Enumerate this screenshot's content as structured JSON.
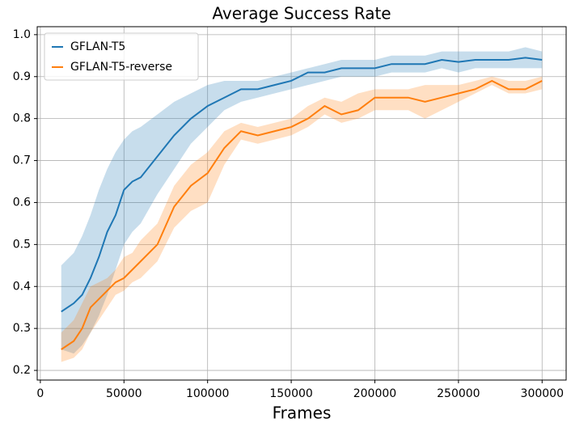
{
  "chart_data": {
    "type": "line",
    "title": "Average Success Rate",
    "x_label": "Frames",
    "x": [
      12500,
      20000,
      25000,
      30000,
      35000,
      40000,
      45000,
      50000,
      55000,
      60000,
      70000,
      80000,
      90000,
      100000,
      110000,
      120000,
      130000,
      140000,
      150000,
      160000,
      170000,
      180000,
      190000,
      200000,
      210000,
      220000,
      230000,
      240000,
      250000,
      260000,
      270000,
      280000,
      290000,
      300000
    ],
    "series": [
      {
        "name": "GFLAN-T5",
        "color": "#1f77b4",
        "values": [
          0.34,
          0.36,
          0.38,
          0.42,
          0.47,
          0.53,
          0.57,
          0.63,
          0.65,
          0.66,
          0.71,
          0.76,
          0.8,
          0.83,
          0.85,
          0.87,
          0.87,
          0.88,
          0.89,
          0.91,
          0.91,
          0.92,
          0.92,
          0.92,
          0.93,
          0.93,
          0.93,
          0.94,
          0.935,
          0.94,
          0.94,
          0.94,
          0.945,
          0.94
        ],
        "lower": [
          0.25,
          0.24,
          0.26,
          0.29,
          0.33,
          0.38,
          0.44,
          0.5,
          0.53,
          0.55,
          0.62,
          0.68,
          0.74,
          0.78,
          0.82,
          0.84,
          0.85,
          0.86,
          0.87,
          0.88,
          0.89,
          0.9,
          0.9,
          0.9,
          0.91,
          0.91,
          0.91,
          0.92,
          0.91,
          0.92,
          0.92,
          0.92,
          0.92,
          0.92
        ],
        "upper": [
          0.45,
          0.48,
          0.52,
          0.57,
          0.63,
          0.68,
          0.72,
          0.75,
          0.77,
          0.78,
          0.81,
          0.84,
          0.86,
          0.88,
          0.89,
          0.89,
          0.89,
          0.9,
          0.91,
          0.92,
          0.93,
          0.94,
          0.94,
          0.94,
          0.95,
          0.95,
          0.95,
          0.96,
          0.96,
          0.96,
          0.96,
          0.96,
          0.97,
          0.96
        ]
      },
      {
        "name": "GFLAN-T5-reverse",
        "color": "#ff7f0e",
        "values": [
          0.25,
          0.27,
          0.3,
          0.35,
          0.37,
          0.39,
          0.41,
          0.42,
          0.44,
          0.46,
          0.5,
          0.59,
          0.64,
          0.67,
          0.73,
          0.77,
          0.76,
          0.77,
          0.78,
          0.8,
          0.83,
          0.81,
          0.82,
          0.85,
          0.85,
          0.85,
          0.84,
          0.85,
          0.86,
          0.87,
          0.89,
          0.87,
          0.87,
          0.89
        ],
        "lower": [
          0.22,
          0.23,
          0.25,
          0.29,
          0.32,
          0.35,
          0.38,
          0.39,
          0.41,
          0.42,
          0.46,
          0.54,
          0.58,
          0.6,
          0.69,
          0.75,
          0.74,
          0.75,
          0.76,
          0.78,
          0.81,
          0.79,
          0.8,
          0.82,
          0.82,
          0.82,
          0.8,
          0.82,
          0.84,
          0.86,
          0.88,
          0.86,
          0.86,
          0.87
        ],
        "upper": [
          0.29,
          0.32,
          0.36,
          0.4,
          0.41,
          0.42,
          0.44,
          0.47,
          0.48,
          0.51,
          0.55,
          0.64,
          0.69,
          0.72,
          0.77,
          0.79,
          0.78,
          0.79,
          0.8,
          0.83,
          0.85,
          0.84,
          0.86,
          0.87,
          0.87,
          0.87,
          0.88,
          0.88,
          0.88,
          0.89,
          0.9,
          0.89,
          0.89,
          0.9
        ]
      }
    ],
    "xlim": [
      -1875,
      314375
    ],
    "ylim": [
      0.177,
      1.019
    ],
    "xticks": [
      0,
      50000,
      100000,
      150000,
      200000,
      250000,
      300000
    ],
    "yticks": [
      0.2,
      0.3,
      0.4,
      0.5,
      0.6,
      0.7,
      0.8,
      0.9,
      {
        "value": 1,
        "label": "1.0"
      }
    ],
    "grid": true,
    "legend": "upper left"
  }
}
